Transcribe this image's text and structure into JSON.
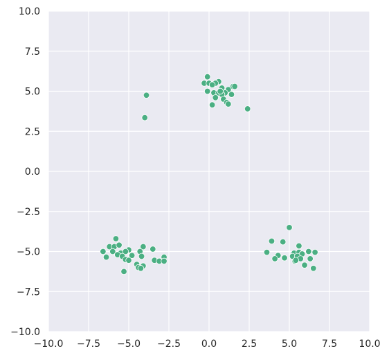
{
  "chart_data": {
    "type": "scatter",
    "title": "",
    "xlabel": "",
    "ylabel": "",
    "xlim": [
      -10,
      10
    ],
    "ylim": [
      -10,
      10
    ],
    "grid": true,
    "background_color": "#EAEAF2",
    "grid_color": "#FFFFFF",
    "marker_color": "#4BAF83",
    "x_ticks": [
      {
        "value": -10,
        "label": "−10.0"
      },
      {
        "value": -7.5,
        "label": "−7.5"
      },
      {
        "value": -5,
        "label": "−5.0"
      },
      {
        "value": -2.5,
        "label": "−2.5"
      },
      {
        "value": 0,
        "label": "0.0"
      },
      {
        "value": 2.5,
        "label": "2.5"
      },
      {
        "value": 5,
        "label": "5.0"
      },
      {
        "value": 7.5,
        "label": "7.5"
      },
      {
        "value": 10,
        "label": "10.0"
      }
    ],
    "y_ticks": [
      {
        "value": 10,
        "label": "10.0"
      },
      {
        "value": 7.5,
        "label": "7.5"
      },
      {
        "value": 5,
        "label": "5.0"
      },
      {
        "value": 2.5,
        "label": "2.5"
      },
      {
        "value": 0,
        "label": "0.0"
      },
      {
        "value": -2.5,
        "label": "−2.5"
      },
      {
        "value": -5,
        "label": "−5.0"
      },
      {
        "value": -7.5,
        "label": "−7.5"
      },
      {
        "value": -10,
        "label": "−10.0"
      }
    ],
    "points": [
      {
        "x": -0.1,
        "y": 5.9
      },
      {
        "x": 0.6,
        "y": 5.6
      },
      {
        "x": -0.3,
        "y": 5.5
      },
      {
        "x": 0.0,
        "y": 5.5
      },
      {
        "x": 0.4,
        "y": 5.5
      },
      {
        "x": 1.5,
        "y": 5.3
      },
      {
        "x": 1.6,
        "y": 5.3
      },
      {
        "x": 0.8,
        "y": 5.2
      },
      {
        "x": 1.2,
        "y": 5.1
      },
      {
        "x": -0.1,
        "y": 5.0
      },
      {
        "x": 0.3,
        "y": 4.9
      },
      {
        "x": 0.6,
        "y": 4.9
      },
      {
        "x": 1.0,
        "y": 4.9
      },
      {
        "x": 0.8,
        "y": 4.8
      },
      {
        "x": 1.4,
        "y": 4.8
      },
      {
        "x": 0.4,
        "y": 4.6
      },
      {
        "x": 0.9,
        "y": 4.5
      },
      {
        "x": 1.1,
        "y": 4.3
      },
      {
        "x": 1.2,
        "y": 4.2
      },
      {
        "x": 0.2,
        "y": 4.15
      },
      {
        "x": 2.4,
        "y": 3.9
      },
      {
        "x": 0.7,
        "y": 5.0
      },
      {
        "x": 0.2,
        "y": 5.4
      },
      {
        "x": -3.9,
        "y": 4.75
      },
      {
        "x": -4.0,
        "y": 3.35
      },
      {
        "x": -5.8,
        "y": -4.2
      },
      {
        "x": -6.2,
        "y": -4.7
      },
      {
        "x": -5.9,
        "y": -4.7
      },
      {
        "x": -5.6,
        "y": -4.6
      },
      {
        "x": -5.0,
        "y": -4.9
      },
      {
        "x": -4.1,
        "y": -4.7
      },
      {
        "x": -3.5,
        "y": -4.85
      },
      {
        "x": -6.6,
        "y": -5.0
      },
      {
        "x": -6.0,
        "y": -5.0
      },
      {
        "x": -5.5,
        "y": -5.1
      },
      {
        "x": -5.2,
        "y": -5.0
      },
      {
        "x": -4.3,
        "y": -5.0
      },
      {
        "x": -5.7,
        "y": -5.2
      },
      {
        "x": -5.4,
        "y": -5.3
      },
      {
        "x": -4.8,
        "y": -5.25
      },
      {
        "x": -4.2,
        "y": -5.3
      },
      {
        "x": -6.4,
        "y": -5.35
      },
      {
        "x": -5.2,
        "y": -5.5
      },
      {
        "x": -5.0,
        "y": -5.55
      },
      {
        "x": -3.4,
        "y": -5.55
      },
      {
        "x": -2.8,
        "y": -5.35
      },
      {
        "x": -3.1,
        "y": -5.6
      },
      {
        "x": -2.8,
        "y": -5.6
      },
      {
        "x": -4.5,
        "y": -5.8
      },
      {
        "x": -4.1,
        "y": -5.9
      },
      {
        "x": -4.4,
        "y": -6.0
      },
      {
        "x": -4.25,
        "y": -6.05
      },
      {
        "x": -5.3,
        "y": -6.25
      },
      {
        "x": 5.0,
        "y": -3.5
      },
      {
        "x": 3.9,
        "y": -4.35
      },
      {
        "x": 4.6,
        "y": -4.4
      },
      {
        "x": 5.6,
        "y": -4.65
      },
      {
        "x": 3.6,
        "y": -5.05
      },
      {
        "x": 4.3,
        "y": -5.25
      },
      {
        "x": 5.3,
        "y": -5.1
      },
      {
        "x": 5.6,
        "y": -5.05
      },
      {
        "x": 5.8,
        "y": -5.15
      },
      {
        "x": 6.2,
        "y": -5.0
      },
      {
        "x": 6.6,
        "y": -5.05
      },
      {
        "x": 4.1,
        "y": -5.45
      },
      {
        "x": 4.7,
        "y": -5.4
      },
      {
        "x": 5.2,
        "y": -5.3
      },
      {
        "x": 5.5,
        "y": -5.3
      },
      {
        "x": 5.35,
        "y": -5.6
      },
      {
        "x": 5.7,
        "y": -5.45
      },
      {
        "x": 6.3,
        "y": -5.45
      },
      {
        "x": 5.4,
        "y": -5.55
      },
      {
        "x": 5.95,
        "y": -5.85
      },
      {
        "x": 6.5,
        "y": -6.05
      }
    ]
  }
}
